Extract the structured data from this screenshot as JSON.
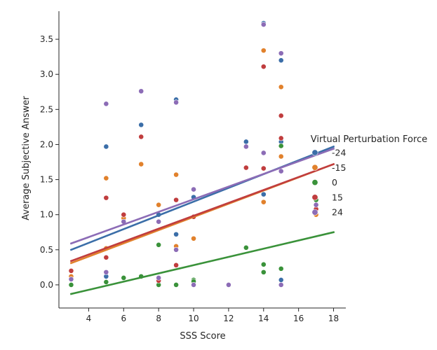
{
  "chart_data": {
    "type": "scatter",
    "title": "",
    "xlabel": "SSS Score",
    "ylabel": "Average Subjective Answer",
    "xlim": [
      2.3,
      18.7
    ],
    "ylim": [
      -0.33,
      3.9
    ],
    "xticks": [
      4,
      6,
      8,
      10,
      12,
      14,
      16,
      18
    ],
    "yticks": [
      0.0,
      0.5,
      1.0,
      1.5,
      2.0,
      2.5,
      3.0,
      3.5
    ],
    "grid": false,
    "legend": {
      "title": "Virtual Perturbation Force",
      "placement": "right"
    },
    "series": [
      {
        "name": "-24",
        "color": "#3b6ea8",
        "points": [
          [
            3,
            0.1
          ],
          [
            5,
            1.97
          ],
          [
            5,
            0.12
          ],
          [
            6,
            0.95
          ],
          [
            7,
            2.28
          ],
          [
            7,
            2.76
          ],
          [
            8,
            0.05
          ],
          [
            8,
            1.0
          ],
          [
            9,
            2.64
          ],
          [
            9,
            0.72
          ],
          [
            10,
            1.25
          ],
          [
            10,
            0.05
          ],
          [
            13,
            2.04
          ],
          [
            14,
            3.73
          ],
          [
            14,
            1.29
          ],
          [
            15,
            3.2
          ],
          [
            15,
            2.04
          ],
          [
            15,
            0.07
          ],
          [
            17,
            1.14
          ]
        ],
        "fit": [
          [
            3,
            0.5
          ],
          [
            18,
            1.97
          ]
        ]
      },
      {
        "name": "-15",
        "color": "#e1812c",
        "points": [
          [
            3,
            0.12
          ],
          [
            5,
            1.52
          ],
          [
            5,
            0.52
          ],
          [
            6,
            0.95
          ],
          [
            7,
            1.72
          ],
          [
            8,
            1.14
          ],
          [
            9,
            1.57
          ],
          [
            9,
            0.55
          ],
          [
            10,
            0.66
          ],
          [
            13,
            1.67
          ],
          [
            14,
            3.34
          ],
          [
            14,
            1.18
          ],
          [
            15,
            2.82
          ],
          [
            15,
            1.83
          ],
          [
            17,
            1.0
          ]
        ],
        "fit": [
          [
            3,
            0.31
          ],
          [
            18,
            1.72
          ]
        ]
      },
      {
        "name": "0",
        "color": "#3a923a",
        "points": [
          [
            3,
            0.0
          ],
          [
            5,
            0.04
          ],
          [
            6,
            0.1
          ],
          [
            7,
            0.12
          ],
          [
            8,
            0.0
          ],
          [
            8,
            0.57
          ],
          [
            9,
            0.0
          ],
          [
            10,
            0.07
          ],
          [
            10,
            0.05
          ],
          [
            13,
            0.53
          ],
          [
            14,
            0.29
          ],
          [
            14,
            0.18
          ],
          [
            15,
            1.98
          ],
          [
            15,
            0.23
          ],
          [
            17,
            1.21
          ]
        ],
        "fit": [
          [
            3,
            -0.13
          ],
          [
            18,
            0.75
          ]
        ]
      },
      {
        "name": "15",
        "color": "#c03d3e",
        "points": [
          [
            3,
            0.2
          ],
          [
            5,
            1.24
          ],
          [
            5,
            0.39
          ],
          [
            6,
            1.0
          ],
          [
            7,
            2.11
          ],
          [
            8,
            0.06
          ],
          [
            9,
            1.21
          ],
          [
            9,
            0.28
          ],
          [
            10,
            0.97
          ],
          [
            13,
            1.67
          ],
          [
            14,
            3.11
          ],
          [
            14,
            1.66
          ],
          [
            15,
            2.41
          ],
          [
            15,
            2.09
          ],
          [
            17,
            1.08
          ]
        ],
        "fit": [
          [
            3,
            0.34
          ],
          [
            18,
            1.72
          ]
        ]
      },
      {
        "name": "24",
        "color": "#8c6cb6",
        "points": [
          [
            3,
            0.08
          ],
          [
            5,
            2.58
          ],
          [
            5,
            0.18
          ],
          [
            6,
            0.9
          ],
          [
            7,
            2.76
          ],
          [
            8,
            0.9
          ],
          [
            8,
            0.1
          ],
          [
            9,
            2.6
          ],
          [
            9,
            0.5
          ],
          [
            10,
            1.36
          ],
          [
            10,
            0.0
          ],
          [
            12,
            0.0
          ],
          [
            13,
            1.97
          ],
          [
            14,
            3.71
          ],
          [
            14,
            1.88
          ],
          [
            15,
            3.3
          ],
          [
            15,
            1.62
          ],
          [
            15,
            0.0
          ],
          [
            17,
            1.14
          ]
        ],
        "fit": [
          [
            3,
            0.59
          ],
          [
            18,
            1.94
          ]
        ]
      }
    ]
  }
}
